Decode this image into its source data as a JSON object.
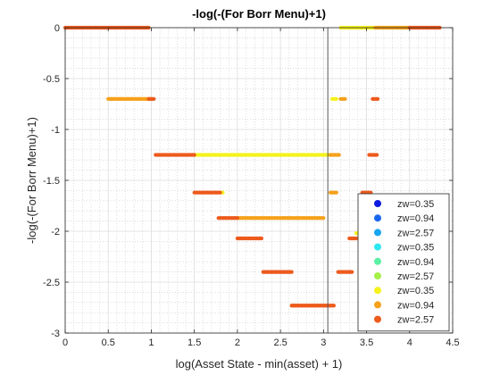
{
  "chart_data": {
    "type": "scatter",
    "title": "-log(-(For Borr Menu)+1)",
    "xlabel": "log(Asset State - min(asset) + 1)",
    "ylabel": "-log(-(For Borr Menu)+1)",
    "xlim": [
      0,
      4.5
    ],
    "ylim": [
      -3,
      0
    ],
    "xticks": [
      0,
      0.5,
      1,
      1.5,
      2,
      2.5,
      3,
      3.5,
      4,
      4.5
    ],
    "xtick_labels": [
      "0",
      "0.5",
      "1",
      "1.5",
      "2",
      "2.5",
      "3",
      "3.5",
      "4",
      "4.5"
    ],
    "yticks": [
      0,
      -0.5,
      -1,
      -1.5,
      -2,
      -2.5,
      -3
    ],
    "ytick_labels": [
      "0",
      "-0.5",
      "-1",
      "-1.5",
      "-2",
      "-2.5",
      "-3"
    ],
    "grid": "minor-dotted",
    "vline_x": 3.05,
    "legend_position": "bottom-right",
    "series": [
      {
        "name": "zw=0.35",
        "color": "#0d1be0",
        "segments": []
      },
      {
        "name": "zw=0.94",
        "color": "#1a66f0",
        "segments": []
      },
      {
        "name": "zw=2.57",
        "color": "#16a6f2",
        "segments": []
      },
      {
        "name": "zw=0.35",
        "color": "#2de8f0",
        "segments": []
      },
      {
        "name": "zw=0.94",
        "color": "#5cf0a4",
        "segments": []
      },
      {
        "name": "zw=2.57",
        "color": "#a6f04a",
        "segments": []
      },
      {
        "name": "zw=0.35",
        "color": "#f5f21c",
        "segments": [
          {
            "y": -1.25,
            "x0": 1.5,
            "x1": 3.08
          },
          {
            "y": 0.0,
            "x0": 3.2,
            "x1": 3.6
          },
          {
            "y": -0.7,
            "x0": 3.1,
            "x1": 3.15
          },
          {
            "y": -1.62,
            "x0": 1.8,
            "x1": 1.83
          },
          {
            "y": -2.02,
            "x0": 3.38,
            "x1": 3.45
          }
        ]
      },
      {
        "name": "zw=0.94",
        "color": "#f5a11a",
        "segments": [
          {
            "y": -0.7,
            "x0": 0.5,
            "x1": 1.0
          },
          {
            "y": -1.87,
            "x0": 2.0,
            "x1": 3.0
          },
          {
            "y": -1.25,
            "x0": 3.08,
            "x1": 3.18
          },
          {
            "y": -1.62,
            "x0": 3.08,
            "x1": 3.15
          },
          {
            "y": -0.7,
            "x0": 3.2,
            "x1": 3.25
          },
          {
            "y": 0.0,
            "x0": 3.6,
            "x1": 4.0
          }
        ]
      },
      {
        "name": "zw=2.57",
        "color": "#ed5a1c",
        "segments": [
          {
            "y": 0.0,
            "x0": 0.0,
            "x1": 0.97
          },
          {
            "y": -0.7,
            "x0": 0.97,
            "x1": 1.03
          },
          {
            "y": -1.25,
            "x0": 1.05,
            "x1": 1.5
          },
          {
            "y": -1.62,
            "x0": 1.5,
            "x1": 1.8
          },
          {
            "y": -1.87,
            "x0": 1.78,
            "x1": 2.0
          },
          {
            "y": -2.07,
            "x0": 2.0,
            "x1": 2.28
          },
          {
            "y": -2.4,
            "x0": 2.3,
            "x1": 2.63
          },
          {
            "y": -2.73,
            "x0": 2.63,
            "x1": 3.12
          },
          {
            "y": -2.4,
            "x0": 3.17,
            "x1": 3.33
          },
          {
            "y": -2.07,
            "x0": 3.3,
            "x1": 3.38
          },
          {
            "y": -1.62,
            "x0": 3.45,
            "x1": 3.55
          },
          {
            "y": -1.25,
            "x0": 3.53,
            "x1": 3.62
          },
          {
            "y": -0.7,
            "x0": 3.57,
            "x1": 3.63
          },
          {
            "y": 0.0,
            "x0": 4.0,
            "x1": 4.35
          }
        ]
      }
    ]
  }
}
